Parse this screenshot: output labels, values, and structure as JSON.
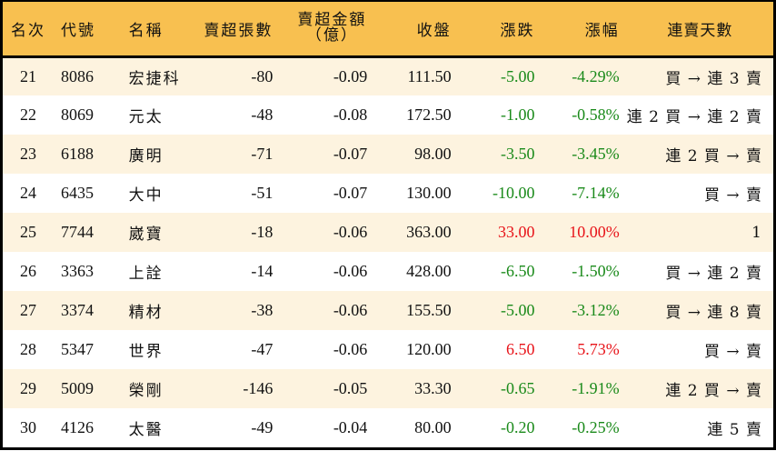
{
  "colors": {
    "header_bg": "#F8C050",
    "row_alt_bg": "#FDF3DF",
    "row_bg": "#FFFFFF",
    "down": "#1A8A1A",
    "up": "#E8141A",
    "border": "#000000"
  },
  "table": {
    "headers": {
      "rank": "名次",
      "code": "代號",
      "name": "名稱",
      "sell_volume": "賣超張數",
      "sell_amount_line1": "賣超金額",
      "sell_amount_line2": "（億）",
      "close": "收盤",
      "change": "漲跌",
      "change_pct": "漲幅",
      "streak": "連賣天數"
    },
    "rows": [
      {
        "rank": "21",
        "code": "8086",
        "name": "宏捷科",
        "sell_volume": "-80",
        "sell_amount": "-0.09",
        "close": "111.50",
        "change": "-5.00",
        "change_pct": "-4.29%",
        "direction": "down",
        "streak": "買 → 連 3 賣"
      },
      {
        "rank": "22",
        "code": "8069",
        "name": "元太",
        "sell_volume": "-48",
        "sell_amount": "-0.08",
        "close": "172.50",
        "change": "-1.00",
        "change_pct": "-0.58%",
        "direction": "down",
        "streak": "連 2 買 → 連 2 賣"
      },
      {
        "rank": "23",
        "code": "6188",
        "name": "廣明",
        "sell_volume": "-71",
        "sell_amount": "-0.07",
        "close": "98.00",
        "change": "-3.50",
        "change_pct": "-3.45%",
        "direction": "down",
        "streak": "連 2 買 → 賣"
      },
      {
        "rank": "24",
        "code": "6435",
        "name": "大中",
        "sell_volume": "-51",
        "sell_amount": "-0.07",
        "close": "130.00",
        "change": "-10.00",
        "change_pct": "-7.14%",
        "direction": "down",
        "streak": "買 → 賣"
      },
      {
        "rank": "25",
        "code": "7744",
        "name": "崴寶",
        "sell_volume": "-18",
        "sell_amount": "-0.06",
        "close": "363.00",
        "change": "33.00",
        "change_pct": "10.00%",
        "direction": "up",
        "streak": "1"
      },
      {
        "rank": "26",
        "code": "3363",
        "name": "上詮",
        "sell_volume": "-14",
        "sell_amount": "-0.06",
        "close": "428.00",
        "change": "-6.50",
        "change_pct": "-1.50%",
        "direction": "down",
        "streak": "買 → 連 2 賣"
      },
      {
        "rank": "27",
        "code": "3374",
        "name": "精材",
        "sell_volume": "-38",
        "sell_amount": "-0.06",
        "close": "155.50",
        "change": "-5.00",
        "change_pct": "-3.12%",
        "direction": "down",
        "streak": "買 → 連 8 賣"
      },
      {
        "rank": "28",
        "code": "5347",
        "name": "世界",
        "sell_volume": "-47",
        "sell_amount": "-0.06",
        "close": "120.00",
        "change": "6.50",
        "change_pct": "5.73%",
        "direction": "up",
        "streak": "買 → 賣"
      },
      {
        "rank": "29",
        "code": "5009",
        "name": "榮剛",
        "sell_volume": "-146",
        "sell_amount": "-0.05",
        "close": "33.30",
        "change": "-0.65",
        "change_pct": "-1.91%",
        "direction": "down",
        "streak": "連 2 買 → 賣"
      },
      {
        "rank": "30",
        "code": "4126",
        "name": "太醫",
        "sell_volume": "-49",
        "sell_amount": "-0.04",
        "close": "80.00",
        "change": "-0.20",
        "change_pct": "-0.25%",
        "direction": "down",
        "streak": "連 5 賣"
      }
    ]
  }
}
